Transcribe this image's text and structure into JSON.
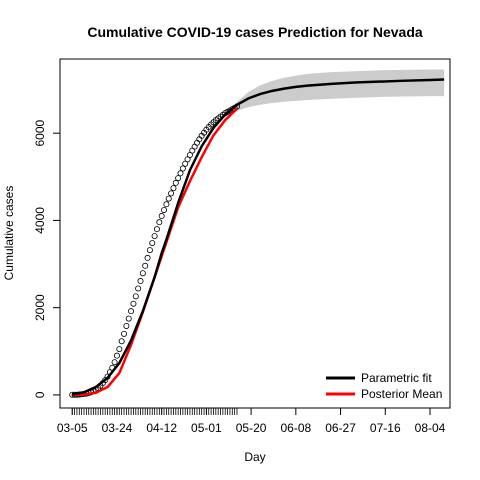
{
  "chart_data": {
    "type": "line",
    "title": "Cumulative COVID-19 cases Prediction for Nevada",
    "xlabel": "Day",
    "ylabel": "Cumulative cases",
    "x_tick_labels": [
      {
        "day": 0,
        "label": "03-05"
      },
      {
        "day": 19,
        "label": "03-24"
      },
      {
        "day": 38,
        "label": "04-12"
      },
      {
        "day": 57,
        "label": "05-01"
      },
      {
        "day": 76,
        "label": "05-20"
      },
      {
        "day": 95,
        "label": "06-08"
      },
      {
        "day": 114,
        "label": "06-27"
      },
      {
        "day": 133,
        "label": "07-16"
      },
      {
        "day": 152,
        "label": "08-04"
      }
    ],
    "y_ticks": [
      0,
      2000,
      4000,
      6000
    ],
    "xlim_days": [
      -5.2,
      160.5
    ],
    "ylim": [
      -300,
      7700
    ],
    "minor_tick_days_range": [
      0,
      70
    ],
    "legend": {
      "position": "bottom-right",
      "entries": [
        {
          "label": "Parametric fit",
          "color": "#000000"
        },
        {
          "label": "Posterior Mean",
          "color": "#ff0000"
        }
      ]
    },
    "parametric_fit": {
      "name": "Parametric fit",
      "color": "#000000",
      "x_days": [
        0,
        5,
        10,
        15,
        20,
        25,
        30,
        35,
        38,
        40,
        45,
        50,
        55,
        60,
        65,
        70,
        75,
        80,
        85,
        90,
        95,
        100,
        110,
        120,
        130,
        140,
        152,
        158
      ],
      "y": [
        10,
        60,
        180,
        390,
        730,
        1250,
        1920,
        2700,
        3250,
        3560,
        4400,
        5150,
        5700,
        6120,
        6430,
        6650,
        6800,
        6900,
        6970,
        7020,
        7060,
        7090,
        7130,
        7160,
        7180,
        7200,
        7220,
        7230
      ]
    },
    "confidence_band": {
      "color": "#cccccc",
      "x_days": [
        66,
        70,
        75,
        80,
        85,
        90,
        95,
        100,
        110,
        120,
        130,
        140,
        152,
        158
      ],
      "lower": [
        6380,
        6510,
        6600,
        6650,
        6690,
        6720,
        6740,
        6760,
        6790,
        6810,
        6830,
        6840,
        6850,
        6850
      ],
      "upper": [
        6470,
        6720,
        6950,
        7100,
        7200,
        7270,
        7320,
        7360,
        7400,
        7420,
        7440,
        7450,
        7460,
        7460
      ]
    },
    "posterior_mean": {
      "name": "Posterior Mean",
      "color": "#ff0000",
      "x_days": [
        0,
        5,
        10,
        15,
        20,
        25,
        30,
        35,
        40,
        45,
        50,
        55,
        60,
        65,
        70
      ],
      "y": [
        0,
        10,
        50,
        180,
        500,
        1150,
        1900,
        2700,
        3500,
        4300,
        4900,
        5450,
        5950,
        6300,
        6560
      ]
    },
    "observed_points": {
      "x_days": [
        0,
        1,
        2,
        3,
        4,
        5,
        6,
        7,
        8,
        9,
        10,
        11,
        12,
        13,
        14,
        15,
        16,
        17,
        18,
        19,
        20,
        21,
        22,
        23,
        24,
        25,
        26,
        27,
        28,
        29,
        30,
        31,
        32,
        33,
        34,
        35,
        36,
        37,
        38,
        39,
        40,
        41,
        42,
        43,
        44,
        45,
        46,
        47,
        48,
        49,
        50,
        51,
        52,
        53,
        54,
        55,
        56,
        57,
        58,
        59,
        60,
        61,
        62,
        63,
        64,
        65,
        66,
        67,
        68,
        69,
        70
      ],
      "y": [
        5,
        5,
        5,
        10,
        15,
        20,
        30,
        45,
        60,
        85,
        120,
        160,
        210,
        270,
        340,
        420,
        520,
        620,
        750,
        900,
        1050,
        1230,
        1400,
        1580,
        1750,
        1920,
        2090,
        2260,
        2440,
        2610,
        2790,
        2960,
        3140,
        3320,
        3480,
        3640,
        3800,
        3960,
        4100,
        4240,
        4370,
        4500,
        4620,
        4740,
        4860,
        4970,
        5080,
        5190,
        5300,
        5400,
        5500,
        5600,
        5690,
        5780,
        5860,
        5940,
        6010,
        6080,
        6140,
        6200,
        6250,
        6300,
        6340,
        6380,
        6420,
        6460,
        6490,
        6520,
        6550,
        6580,
        6610
      ]
    }
  }
}
